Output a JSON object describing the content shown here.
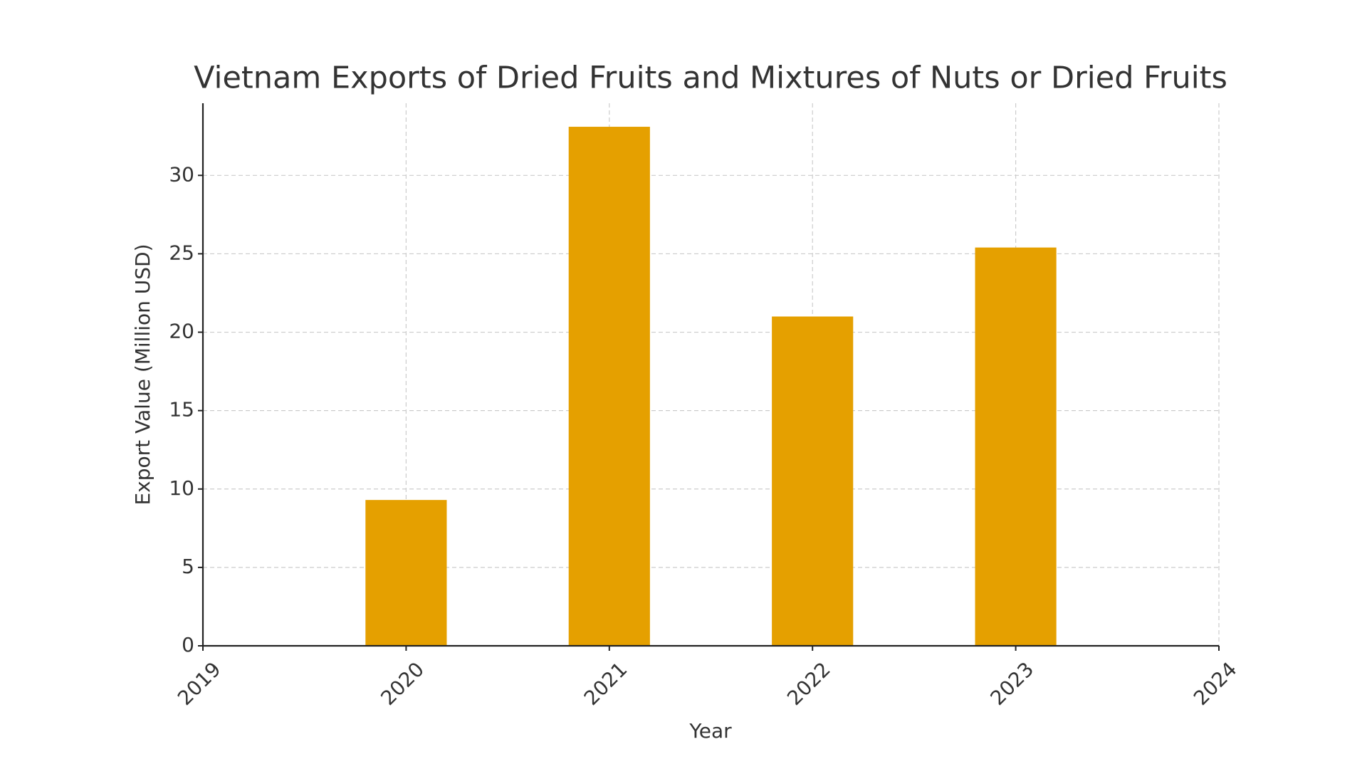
{
  "chart_data": {
    "type": "bar",
    "title": "Vietnam Exports of Dried Fruits and Mixtures of Nuts or Dried Fruits",
    "x_label": "Year",
    "y_label": "Export Value (Million USD)",
    "x": [
      2020,
      2021,
      2022,
      2023
    ],
    "values": [
      9.3,
      33.1,
      21.0,
      25.4
    ],
    "color": "#e5a000",
    "xlim": [
      2019,
      2024
    ],
    "xticks": [
      2019,
      2020,
      2021,
      2022,
      2023,
      2024
    ],
    "ylim": [
      0,
      34.6
    ],
    "yticks": [
      0,
      5,
      10,
      15,
      20,
      25,
      30
    ],
    "grid": true
  }
}
